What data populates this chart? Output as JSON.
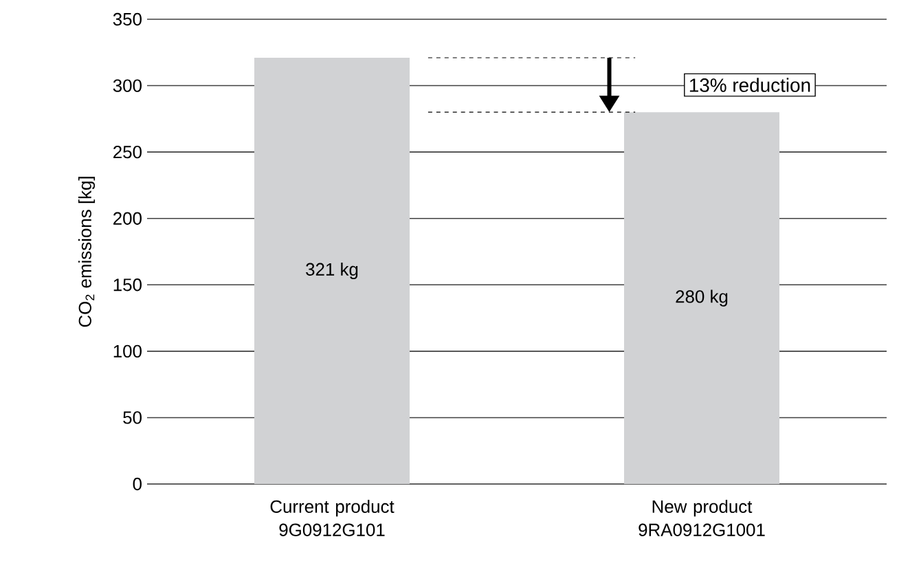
{
  "chart_data": {
    "type": "bar",
    "ylabel": "CO$_{2}$ emissions [kg]",
    "categories": [
      "Current product 9G0912G101",
      "New product 9RA0912G1001"
    ],
    "values": [
      321,
      280
    ],
    "color": "#d1d2d4",
    "value_labels": [
      "321 kg",
      "280 kg"
    ],
    "ylim": [
      0,
      350
    ],
    "yticks": [
      0,
      50,
      100,
      150,
      200,
      250,
      300,
      350
    ],
    "grid": "y",
    "annotations": [
      "13% reduction"
    ],
    "ref_lines": [
      {
        "axis": "y",
        "value": 321,
        "line_style": "dashed",
        "color": "#000000"
      },
      {
        "axis": "y",
        "value": 280,
        "line_style": "dashed",
        "color": "#000000"
      }
    ]
  }
}
